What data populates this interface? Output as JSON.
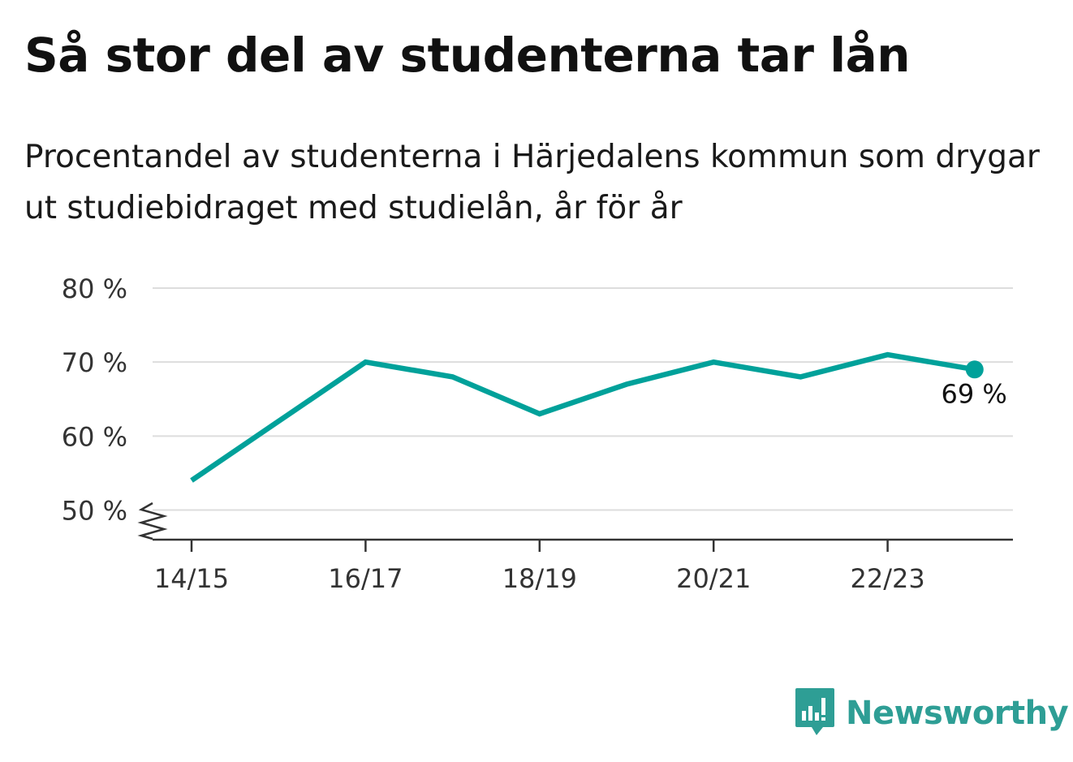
{
  "header": {
    "title": "Så stor del av studenterna tar lån",
    "subtitle": "Procentandel av studenterna i Härjedalens kommun som drygar ut studiebidraget med studielån, år för år"
  },
  "brand": {
    "name": "Newsworthy",
    "logo_icon": "bar-chart-speech-bubble-icon",
    "color": "#2e9e95"
  },
  "chart_data": {
    "type": "line",
    "x": [
      "14/15",
      "15/16",
      "16/17",
      "17/18",
      "18/19",
      "19/20",
      "20/21",
      "21/22",
      "22/23",
      "23/24"
    ],
    "series": [
      {
        "values": [
          54,
          62,
          70,
          68,
          63,
          67,
          70,
          68,
          71,
          69
        ],
        "color": "#00a19a"
      }
    ],
    "x_tick_labels": [
      "14/15",
      "16/17",
      "18/19",
      "20/21",
      "22/23"
    ],
    "y_ticks": [
      50,
      60,
      70,
      80
    ],
    "y_tick_labels": [
      "50 %",
      "60 %",
      "70 %",
      "80 %"
    ],
    "ylim": [
      46,
      80
    ],
    "y_axis_break": true,
    "grid": "horizontal",
    "end_label": "69 %",
    "xlabel": "",
    "ylabel": ""
  }
}
